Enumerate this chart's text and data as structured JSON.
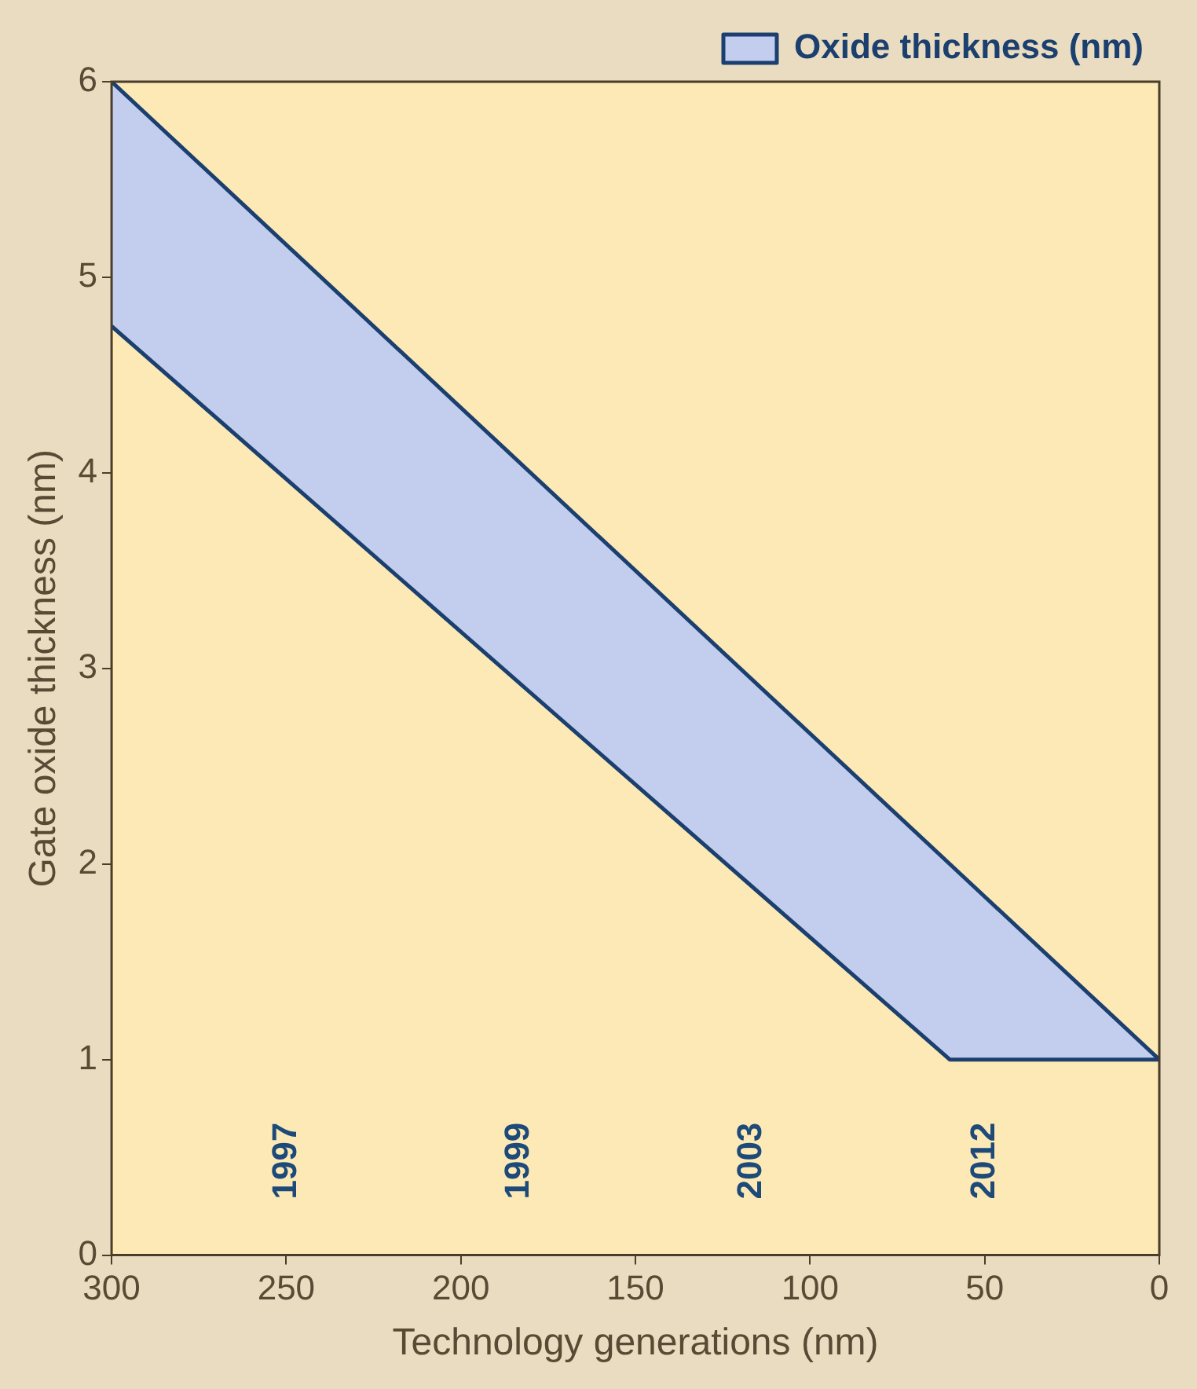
{
  "chart_data": {
    "type": "area",
    "xlabel": "Technology generations (nm)",
    "ylabel": "Gate oxide thickness (nm)",
    "series": [
      {
        "type": "line",
        "color": "#1b3f6e",
        "x": [
          300,
          60,
          0
        ],
        "values": [
          4.75,
          1,
          1
        ]
      },
      {
        "name": "Oxide thickness (nm)",
        "color": "#1b3f6e",
        "x": [
          300,
          60,
          0
        ],
        "values": [
          6,
          2,
          1
        ]
      }
    ],
    "xlim": [
      300,
      0
    ],
    "xticks": [
      300,
      250,
      200,
      150,
      100,
      50,
      0
    ],
    "ylim": [
      0,
      6
    ],
    "yticks": [
      0,
      1,
      2,
      3,
      4,
      5,
      6
    ],
    "annotations": [
      "1997",
      "1999",
      "2003",
      "2012"
    ],
    "grid": false,
    "legend": "top right",
    "marker": "none",
    "line_style": "solid"
  }
}
